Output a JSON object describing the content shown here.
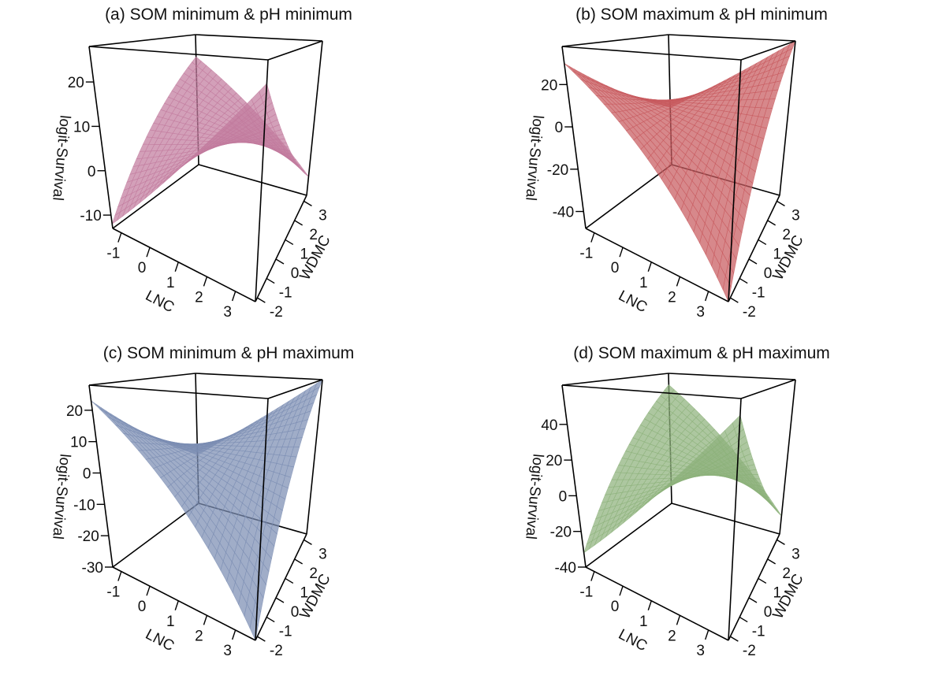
{
  "chart_data": [
    {
      "type": "surface3d",
      "panel": "a",
      "title": "(a)   SOM minimum  &  pH minimum",
      "xlabel": "LNC",
      "ylabel": "WDMC",
      "zlabel": "logit-Survival",
      "xlim": [
        -1.3,
        3.7
      ],
      "ylim": [
        -2.2,
        3.3
      ],
      "zlim": [
        -13,
        28
      ],
      "xticks": [
        -1,
        0,
        1,
        2,
        3
      ],
      "yticks": [
        -2,
        -1,
        0,
        1,
        2,
        3
      ],
      "zticks": [
        -10,
        0,
        10,
        20
      ],
      "color": "#c27b9e",
      "corner_values": {
        "xmin_ymin": -12,
        "xmax_ymin": 24,
        "xmax_ymax": -8,
        "xmin_ymax": 21
      },
      "saddle_center": 4
    },
    {
      "type": "surface3d",
      "panel": "b",
      "title": "(b)   SOM maximum  &  pH minimum",
      "xlabel": "LNC",
      "ylabel": "WDMC",
      "zlabel": "logit-Survival",
      "xlim": [
        -1.3,
        3.7
      ],
      "ylim": [
        -2.2,
        3.3
      ],
      "zlim": [
        -48,
        38
      ],
      "xticks": [
        -1,
        0,
        1,
        2,
        3
      ],
      "yticks": [
        -2,
        -1,
        0,
        1,
        2,
        3
      ],
      "zticks": [
        -40,
        -20,
        0,
        20
      ],
      "color": "#c85a5e",
      "corner_values": {
        "xmin_ymin": 30,
        "xmax_ymin": -48,
        "xmax_ymax": 38,
        "xmin_ymax": -10
      },
      "saddle_center": 8
    },
    {
      "type": "surface3d",
      "panel": "c",
      "title": "(c)   SOM minimum  &  pH maximum",
      "xlabel": "LNC",
      "ylabel": "WDMC",
      "zlabel": "logit-Survival",
      "xlim": [
        -1.3,
        3.7
      ],
      "ylim": [
        -2.2,
        3.3
      ],
      "zlim": [
        -30,
        28
      ],
      "xticks": [
        -1,
        0,
        1,
        2,
        3
      ],
      "yticks": [
        -2,
        -1,
        0,
        1,
        2,
        3
      ],
      "zticks": [
        -30,
        -20,
        -10,
        0,
        10,
        20
      ],
      "color": "#7c8db3",
      "corner_values": {
        "xmin_ymin": 23,
        "xmax_ymin": -30,
        "xmax_ymax": 28,
        "xmin_ymax": -8
      },
      "saddle_center": 4
    },
    {
      "type": "surface3d",
      "panel": "d",
      "title": "(d)   SOM maximum  &  pH maximum",
      "xlabel": "LNC",
      "ylabel": "WDMC",
      "zlabel": "logit-Survival",
      "xlim": [
        -1.3,
        3.7
      ],
      "ylim": [
        -2.2,
        3.3
      ],
      "zlim": [
        -40,
        62
      ],
      "xticks": [
        -1,
        0,
        1,
        2,
        3
      ],
      "yticks": [
        -2,
        -1,
        0,
        1,
        2,
        3
      ],
      "zticks": [
        -40,
        -20,
        0,
        20,
        40
      ],
      "color": "#8db27c",
      "corner_values": {
        "xmin_ymin": -32,
        "xmax_ymin": 55,
        "xmax_ymax": -28,
        "xmin_ymax": 53
      },
      "saddle_center": 8
    }
  ]
}
